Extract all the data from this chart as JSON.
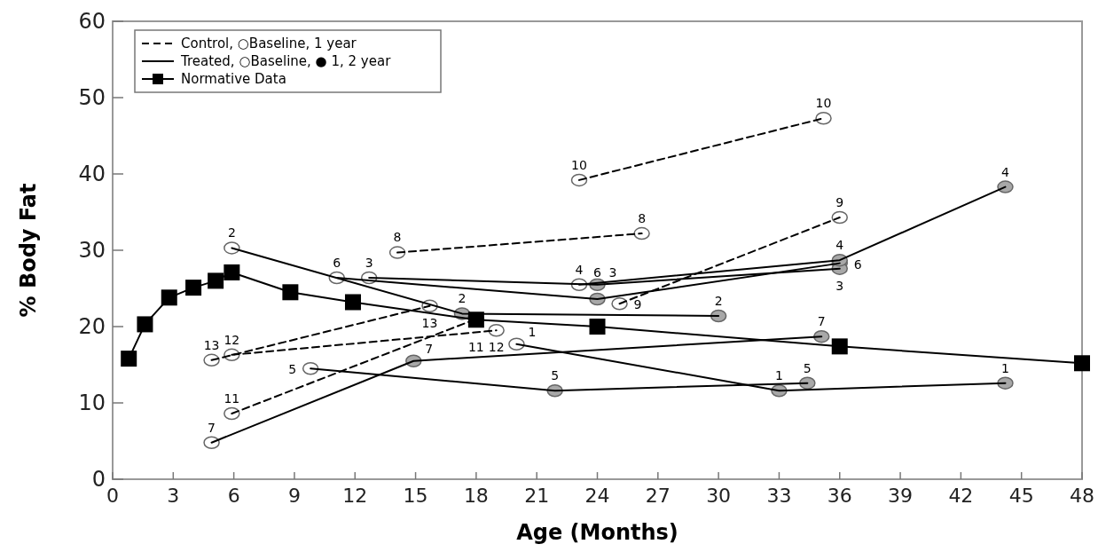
{
  "chart_data": {
    "type": "line",
    "xlabel": "Age (Months)",
    "ylabel": "% Body Fat",
    "xlim": [
      0,
      48
    ],
    "xticks": [
      0,
      3,
      6,
      9,
      12,
      15,
      18,
      21,
      24,
      27,
      30,
      33,
      36,
      39,
      42,
      45,
      48
    ],
    "ylim": [
      0,
      60
    ],
    "yticks": [
      0,
      10,
      20,
      30,
      40,
      50,
      60
    ],
    "grid": false,
    "legend": "top left",
    "marker": "circle",
    "series": [
      {
        "name": "Control, ○Baseline, 1 year",
        "color": "#000000",
        "line_style": "dashed",
        "x": [
          23.1,
          35.2
        ],
        "values": [
          39.2,
          47.3
        ],
        "colors": [
          "#ffffff",
          "#ffffff"
        ]
      },
      {
        "color": "#000000",
        "line_style": "dashed",
        "x": [
          14.1,
          26.2
        ],
        "values": [
          29.7,
          32.2
        ],
        "colors": [
          "#ffffff",
          "#ffffff"
        ]
      },
      {
        "color": "#000000",
        "line_style": "dashed",
        "x": [
          25.1,
          36
        ],
        "values": [
          23,
          34.3
        ],
        "colors": [
          "#ffffff",
          "#ffffff"
        ]
      },
      {
        "color": "#000000",
        "line_style": "dashed",
        "x": [
          5.9,
          19
        ],
        "values": [
          16.3,
          19.5
        ],
        "colors": [
          "#ffffff",
          "#ffffff"
        ]
      },
      {
        "color": "#000000",
        "line_style": "dashed",
        "x": [
          4.9,
          15.7
        ],
        "values": [
          15.6,
          22.7
        ],
        "colors": [
          "#ffffff",
          "#ffffff"
        ]
      },
      {
        "color": "#000000",
        "line_style": "dashed",
        "x": [
          5.9,
          18
        ],
        "values": [
          8.6,
          21
        ],
        "colors": [
          "#ffffff",
          "#ffffff"
        ]
      },
      {
        "name": "Treated, ○Baseline, ● 1, 2 year",
        "color": "#000000",
        "line_style": "solid",
        "x": [
          5.9,
          17.3,
          30
        ],
        "values": [
          30.3,
          21.7,
          21.4
        ],
        "colors": [
          "#ffffff",
          "#a8a8a8",
          "#a8a8a8"
        ]
      },
      {
        "color": "#000000",
        "line_style": "solid",
        "x": [
          11.1,
          24,
          36
        ],
        "values": [
          26.4,
          23.6,
          28.3
        ],
        "colors": [
          "#ffffff",
          "#a8a8a8",
          "#a8a8a8"
        ]
      },
      {
        "color": "#000000",
        "line_style": "solid",
        "x": [
          12.7,
          24,
          36
        ],
        "values": [
          26.4,
          25.5,
          27.6
        ],
        "colors": [
          "#ffffff",
          "#a8a8a8",
          "#a8a8a8"
        ]
      },
      {
        "color": "#000000",
        "line_style": "solid",
        "x": [
          23.1,
          36,
          44.2
        ],
        "values": [
          25.5,
          28.7,
          38.3
        ],
        "colors": [
          "#ffffff",
          "#a8a8a8",
          "#a8a8a8"
        ]
      },
      {
        "color": "#000000",
        "line_style": "solid",
        "x": [
          4.9,
          14.9,
          35.1
        ],
        "values": [
          4.8,
          15.5,
          18.7
        ],
        "colors": [
          "#ffffff",
          "#a8a8a8",
          "#a8a8a8"
        ]
      },
      {
        "color": "#000000",
        "line_style": "solid",
        "x": [
          9.8,
          21.9,
          34.4
        ],
        "values": [
          14.5,
          11.6,
          12.6
        ],
        "colors": [
          "#ffffff",
          "#a8a8a8",
          "#a8a8a8"
        ]
      },
      {
        "color": "#000000",
        "line_style": "solid",
        "x": [
          20,
          33,
          44.2
        ],
        "values": [
          17.7,
          11.6,
          12.6
        ],
        "colors": [
          "#ffffff",
          "#a8a8a8",
          "#a8a8a8"
        ]
      },
      {
        "name": "Normative Data",
        "color": "#000000",
        "line_style": "solid",
        "marker": "square",
        "x": [
          0.8,
          1.6,
          2.8,
          4,
          5.1,
          5.9,
          8.8,
          11.9,
          18,
          24,
          36,
          48
        ],
        "values": [
          15.8,
          20.3,
          23.8,
          25.1,
          26,
          27.1,
          24.5,
          23.2,
          20.9,
          20,
          17.4,
          15.2
        ]
      }
    ],
    "annotations": [
      {
        "text": "10",
        "x": 23.1,
        "y": 39.2
      },
      {
        "text": "10",
        "x": 35.2,
        "y": 47.3
      },
      {
        "text": "8",
        "x": 14.1,
        "y": 29.7
      },
      {
        "text": "8",
        "x": 26.2,
        "y": 32.2
      },
      {
        "text": "9",
        "x": 25.1,
        "y": 23
      },
      {
        "text": "9",
        "x": 36,
        "y": 34.3
      },
      {
        "text": "12",
        "x": 5.9,
        "y": 16.3
      },
      {
        "text": "12",
        "x": 19,
        "y": 19.5
      },
      {
        "text": "13",
        "x": 4.9,
        "y": 15.6
      },
      {
        "text": "13",
        "x": 15.7,
        "y": 22.7
      },
      {
        "text": "11",
        "x": 5.9,
        "y": 8.6
      },
      {
        "text": "11",
        "x": 18,
        "y": 21
      },
      {
        "text": "2",
        "x": 5.9,
        "y": 30.3
      },
      {
        "text": "2",
        "x": 17.3,
        "y": 21.7
      },
      {
        "text": "2",
        "x": 30,
        "y": 21.4
      },
      {
        "text": "6",
        "x": 11.1,
        "y": 26.4
      },
      {
        "text": "6",
        "x": 24,
        "y": 23.6
      },
      {
        "text": "6",
        "x": 36,
        "y": 28.3
      },
      {
        "text": "3",
        "x": 12.7,
        "y": 26.4
      },
      {
        "text": "3",
        "x": 24,
        "y": 25.5
      },
      {
        "text": "3",
        "x": 36,
        "y": 27.6
      },
      {
        "text": "4",
        "x": 23.1,
        "y": 25.5
      },
      {
        "text": "4",
        "x": 36,
        "y": 28.7
      },
      {
        "text": "4",
        "x": 44.2,
        "y": 38.3
      },
      {
        "text": "7",
        "x": 4.9,
        "y": 4.8
      },
      {
        "text": "7",
        "x": 14.9,
        "y": 15.5
      },
      {
        "text": "7",
        "x": 35.1,
        "y": 18.7
      },
      {
        "text": "5",
        "x": 9.8,
        "y": 14.5
      },
      {
        "text": "5",
        "x": 21.9,
        "y": 11.6
      },
      {
        "text": "5",
        "x": 34.4,
        "y": 12.6
      },
      {
        "text": "1",
        "x": 20,
        "y": 17.7
      },
      {
        "text": "1",
        "x": 33,
        "y": 11.6
      },
      {
        "text": "1",
        "x": 44.2,
        "y": 12.6
      }
    ]
  }
}
